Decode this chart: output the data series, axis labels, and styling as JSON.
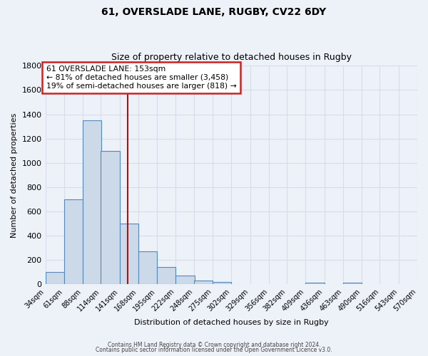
{
  "title1": "61, OVERSLADE LANE, RUGBY, CV22 6DY",
  "title2": "Size of property relative to detached houses in Rugby",
  "xlabel": "Distribution of detached houses by size in Rugby",
  "ylabel": "Number of detached properties",
  "bar_color": "#ccd9e8",
  "bar_edge_color": "#5588bb",
  "background_color": "#edf1f8",
  "grid_color": "#d8dde8",
  "annotation_box_color": "#ffffff",
  "annotation_border_color": "#cc2222",
  "vline_color": "#aa1111",
  "vline_x": 153,
  "annotation_line1": "61 OVERSLADE LANE: 153sqm",
  "annotation_line2": "← 81% of detached houses are smaller (3,458)",
  "annotation_line3": "19% of semi-detached houses are larger (818) →",
  "bins": [
    34,
    61,
    88,
    114,
    141,
    168,
    195,
    222,
    248,
    275,
    302,
    329,
    356,
    382,
    409,
    436,
    463,
    490,
    516,
    543,
    570
  ],
  "counts": [
    100,
    700,
    1350,
    1100,
    500,
    270,
    140,
    75,
    30,
    20,
    0,
    0,
    0,
    0,
    15,
    0,
    15,
    0,
    0,
    0,
    0
  ],
  "ylim": [
    0,
    1800
  ],
  "yticks": [
    0,
    200,
    400,
    600,
    800,
    1000,
    1200,
    1400,
    1600,
    1800
  ],
  "footer1": "Contains HM Land Registry data © Crown copyright and database right 2024.",
  "footer2": "Contains public sector information licensed under the Open Government Licence v3.0."
}
